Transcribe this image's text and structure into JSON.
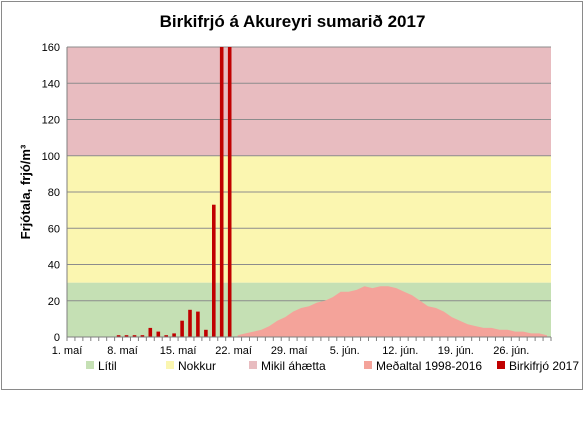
{
  "chart_data": {
    "type": "bar",
    "title": "Birkifrjó á Akureyri sumarið 2017",
    "xlabel": "",
    "ylabel": "Frjótala, frjó/m³",
    "ylim": [
      0,
      160
    ],
    "yticks": [
      "0",
      "20",
      "40",
      "60",
      "80",
      "100",
      "120",
      "140",
      "160"
    ],
    "ytick_values": [
      0,
      20,
      40,
      60,
      80,
      100,
      120,
      140,
      160
    ],
    "x_start_date": "2017-05-01",
    "x_days": 61,
    "xticks": [
      {
        "day": 0,
        "label": "1. maí"
      },
      {
        "day": 7,
        "label": "8. maí"
      },
      {
        "day": 14,
        "label": "15. maí"
      },
      {
        "day": 21,
        "label": "22. maí"
      },
      {
        "day": 28,
        "label": "29. maí"
      },
      {
        "day": 35,
        "label": "5. jún."
      },
      {
        "day": 42,
        "label": "12. jún."
      },
      {
        "day": 49,
        "label": "19. jún."
      },
      {
        "day": 56,
        "label": "26. jún."
      }
    ],
    "bands": [
      {
        "name": "Lítil",
        "from": 0,
        "to": 30,
        "color": "#c5e0b4"
      },
      {
        "name": "Nokkur",
        "from": 30,
        "to": 100,
        "color": "#fbf6b0"
      },
      {
        "name": "Mikil áhætta",
        "from": 100,
        "to": 160,
        "color": "#e8bcc0"
      }
    ],
    "series": [
      {
        "name": "Meðaltal 1998-2016",
        "kind": "area",
        "color": "#f4a39a",
        "points": [
          [
            21,
            1
          ],
          [
            22,
            2
          ],
          [
            23,
            3
          ],
          [
            24,
            4
          ],
          [
            25,
            6
          ],
          [
            26,
            9
          ],
          [
            27,
            11
          ],
          [
            28,
            14
          ],
          [
            29,
            16
          ],
          [
            30,
            17
          ],
          [
            31,
            19
          ],
          [
            32,
            20
          ],
          [
            33,
            22
          ],
          [
            34,
            25
          ],
          [
            35,
            25
          ],
          [
            36,
            26
          ],
          [
            37,
            28
          ],
          [
            38,
            27
          ],
          [
            39,
            28
          ],
          [
            40,
            28
          ],
          [
            41,
            27
          ],
          [
            42,
            25
          ],
          [
            43,
            23
          ],
          [
            44,
            20
          ],
          [
            45,
            17
          ],
          [
            46,
            16
          ],
          [
            47,
            14
          ],
          [
            48,
            11
          ],
          [
            49,
            9
          ],
          [
            50,
            7
          ],
          [
            51,
            6
          ],
          [
            52,
            5
          ],
          [
            53,
            5
          ],
          [
            54,
            4
          ],
          [
            55,
            4
          ],
          [
            56,
            3
          ],
          [
            57,
            3
          ],
          [
            58,
            2
          ],
          [
            59,
            2
          ],
          [
            60,
            1
          ]
        ]
      },
      {
        "name": "Birkifrjó 2017",
        "kind": "bar",
        "color": "#c00000",
        "points": [
          [
            6,
            1
          ],
          [
            7,
            1
          ],
          [
            8,
            1
          ],
          [
            9,
            1
          ],
          [
            10,
            5
          ],
          [
            11,
            3
          ],
          [
            12,
            1
          ],
          [
            13,
            2
          ],
          [
            14,
            9
          ],
          [
            15,
            15
          ],
          [
            16,
            14
          ],
          [
            17,
            4
          ],
          [
            18,
            73
          ],
          [
            19,
            160
          ],
          [
            20,
            160
          ]
        ]
      }
    ],
    "legend": {
      "placement": "bottom",
      "items": [
        {
          "label": "Lítil",
          "color": "#c5e0b4",
          "shape": "square"
        },
        {
          "label": "Nokkur",
          "color": "#fbf6b0",
          "shape": "square"
        },
        {
          "label": "Mikil áhætta",
          "color": "#e8bcc0",
          "shape": "square"
        },
        {
          "label": "Meðaltal 1998-2016",
          "color": "#f4a39a",
          "shape": "square"
        },
        {
          "label": "Birkifrjó 2017",
          "color": "#c00000",
          "shape": "square"
        }
      ]
    },
    "grid": true
  }
}
